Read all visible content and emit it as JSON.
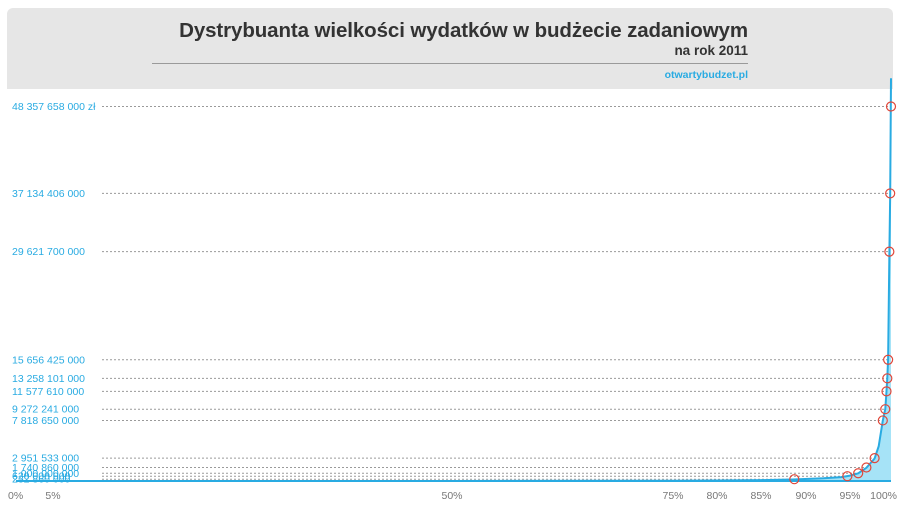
{
  "header": {
    "title": "Dystrybuanta wielkości wydatków w budżecie zadaniowym",
    "subtitle": "na rok 2011",
    "source": "otwartybudzet.pl"
  },
  "colors": {
    "header_bg": "#e6e6e6",
    "title_text": "#333333",
    "accent": "#29abe2",
    "area_fill": "#a6e3f7",
    "marker": "#e0473a",
    "gridline": "#9a9a9a"
  },
  "chart_data": {
    "type": "area",
    "title": "Dystrybuanta wielkości wydatków w budżecie zadaniowym",
    "subtitle": "na rok 2011",
    "xlim": [
      0,
      100
    ],
    "ylim": [
      0,
      52000000000
    ],
    "grid": "horizontal dashed reference lines at labeled values",
    "x_ticks": [
      {
        "value": 0,
        "label": "0%"
      },
      {
        "value": 5,
        "label": "5%"
      },
      {
        "value": 50,
        "label": "50%"
      },
      {
        "value": 75,
        "label": "75%"
      },
      {
        "value": 80,
        "label": "80%"
      },
      {
        "value": 85,
        "label": "85%"
      },
      {
        "value": 90,
        "label": "90%"
      },
      {
        "value": 95,
        "label": "95%"
      },
      {
        "value": 100,
        "label": "100%"
      }
    ],
    "y_ticks": [
      {
        "value": 48357658000,
        "label": "48 357 658 000 zł"
      },
      {
        "value": 37134406000,
        "label": "37 134 406 000"
      },
      {
        "value": 29621700000,
        "label": "29 621 700 000"
      },
      {
        "value": 15656425000,
        "label": "15 656 425 000"
      },
      {
        "value": 13258101000,
        "label": "13 258 101 000"
      },
      {
        "value": 11577610000,
        "label": "11 577 610 000"
      },
      {
        "value": 9272241000,
        "label": "9 272 241 000"
      },
      {
        "value": 7818650000,
        "label": "7 818 650 000"
      },
      {
        "value": 2951533000,
        "label": "2 951 533 000"
      },
      {
        "value": 1740860000,
        "label": "1 740 860 000"
      },
      {
        "value": 1000000000,
        "label": "1 000 000 000"
      },
      {
        "value": 620000000,
        "label": "620 000 000"
      },
      {
        "value": 232860000,
        "label": "232 860 000"
      }
    ],
    "series": [
      {
        "values": [
          {
            "x": 0,
            "y": 0
          },
          {
            "x": 50,
            "y": 5000000
          },
          {
            "x": 75,
            "y": 40000000
          },
          {
            "x": 80,
            "y": 70000000
          },
          {
            "x": 85,
            "y": 120000000
          },
          {
            "x": 88.5,
            "y": 200000000
          },
          {
            "x": 92,
            "y": 350000000
          },
          {
            "x": 94,
            "y": 500000000
          },
          {
            "x": 95,
            "y": 700000000
          },
          {
            "x": 96,
            "y": 1000000000
          },
          {
            "x": 97,
            "y": 1700000000
          },
          {
            "x": 98,
            "y": 2900000000
          },
          {
            "x": 98.5,
            "y": 4500000000
          },
          {
            "x": 99,
            "y": 7800000000
          },
          {
            "x": 99.3,
            "y": 9300000000
          },
          {
            "x": 99.45,
            "y": 11600000000
          },
          {
            "x": 99.55,
            "y": 13300000000
          },
          {
            "x": 99.65,
            "y": 15700000000
          },
          {
            "x": 99.8,
            "y": 29600000000
          },
          {
            "x": 99.9,
            "y": 37100000000
          },
          {
            "x": 100,
            "y": 52000000000
          }
        ]
      }
    ],
    "markers": [
      {
        "x": 88.7,
        "y": 232860000
      },
      {
        "x": 94.7,
        "y": 620000000
      },
      {
        "x": 96.0,
        "y": 1000000000
      },
      {
        "x": 97.0,
        "y": 1740860000
      },
      {
        "x": 98.0,
        "y": 2951533000
      },
      {
        "x": 99.0,
        "y": 7818650000
      },
      {
        "x": 99.3,
        "y": 9272241000
      },
      {
        "x": 99.45,
        "y": 11577610000
      },
      {
        "x": 99.55,
        "y": 13258101000
      },
      {
        "x": 99.65,
        "y": 15656425000
      },
      {
        "x": 99.8,
        "y": 29621700000
      },
      {
        "x": 99.9,
        "y": 37134406000
      },
      {
        "x": 100,
        "y": 48357658000
      }
    ]
  }
}
